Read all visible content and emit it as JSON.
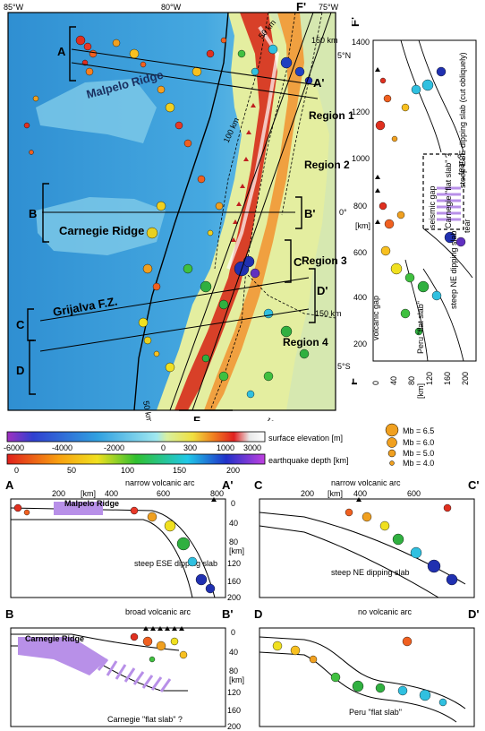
{
  "map": {
    "lon_labels": [
      "85°W",
      "80°W",
      "75°W"
    ],
    "lat_labels": [
      "5°N",
      "0°",
      "5°S"
    ],
    "regions": [
      "Region 1",
      "Region 2",
      "Region 3",
      "Region 4"
    ],
    "ridges": [
      "Malpelo Ridge",
      "Carnegie Ridge",
      "Grijalva F.Z."
    ],
    "section_letters": [
      "A",
      "A'",
      "B",
      "B'",
      "C",
      "C'",
      "D",
      "D'",
      "F",
      "F'"
    ],
    "contours": [
      "50 km",
      "100 km",
      "150 km"
    ]
  },
  "legend": {
    "elevation_label": "surface elevation [m]",
    "elevation_ticks": [
      "-6000",
      "-4000",
      "-2000",
      "0",
      "300",
      "1000",
      "3000"
    ],
    "depth_label": "earthquake depth [km]",
    "depth_ticks": [
      "0",
      "50",
      "100",
      "150",
      "200"
    ],
    "magnitudes": [
      "Mb = 6.5",
      "Mb = 6.0",
      "Mb = 5.0",
      "Mb = 4.0"
    ]
  },
  "f_section": {
    "y_ticks": [
      "200",
      "400",
      "600",
      "800",
      "1000",
      "1200",
      "1400"
    ],
    "x_ticks": [
      "0",
      "40",
      "80",
      "120",
      "160",
      "200"
    ],
    "km_y": "[km]",
    "km_x": "[km]",
    "labels": [
      "steep ESE dipping slab (cut obliquely)",
      "tear ?",
      "seismic gap",
      "Carnegie \"flat slab\" ?",
      "tear",
      "steep NE dipping slab",
      "Peru \"flat slab\"",
      "volcanic gap"
    ]
  },
  "sections": {
    "A": {
      "left": "A",
      "right": "A'",
      "arc": "narrow volcanic arc",
      "notes": [
        "Malpelo Ridge",
        "steep ESE dipping slab"
      ]
    },
    "B": {
      "left": "B",
      "right": "B'",
      "arc": "broad volcanic arc",
      "notes": [
        "Carnegie Ridge",
        "Carnegie \"flat slab\" ?"
      ]
    },
    "C": {
      "left": "C",
      "right": "C'",
      "arc": "narrow volcanic arc",
      "notes": [
        "steep NE dipping slab"
      ]
    },
    "D": {
      "left": "D",
      "right": "D'",
      "arc": "no volcanic arc",
      "notes": [
        "Peru \"flat slab\""
      ]
    },
    "x_ticks": [
      "200",
      "400",
      "600",
      "800"
    ],
    "x_unit": "[km]",
    "y_ticks": [
      "0",
      "40",
      "80",
      "120",
      "160",
      "200"
    ],
    "y_unit": "[km]"
  },
  "colors": {
    "ocean_deep": "#2f9ad8",
    "ocean_shallow": "#7fd0e8",
    "lowland": "#e8f0a8",
    "andes": "#d83a2a",
    "slab_purple": "#b890e8"
  }
}
